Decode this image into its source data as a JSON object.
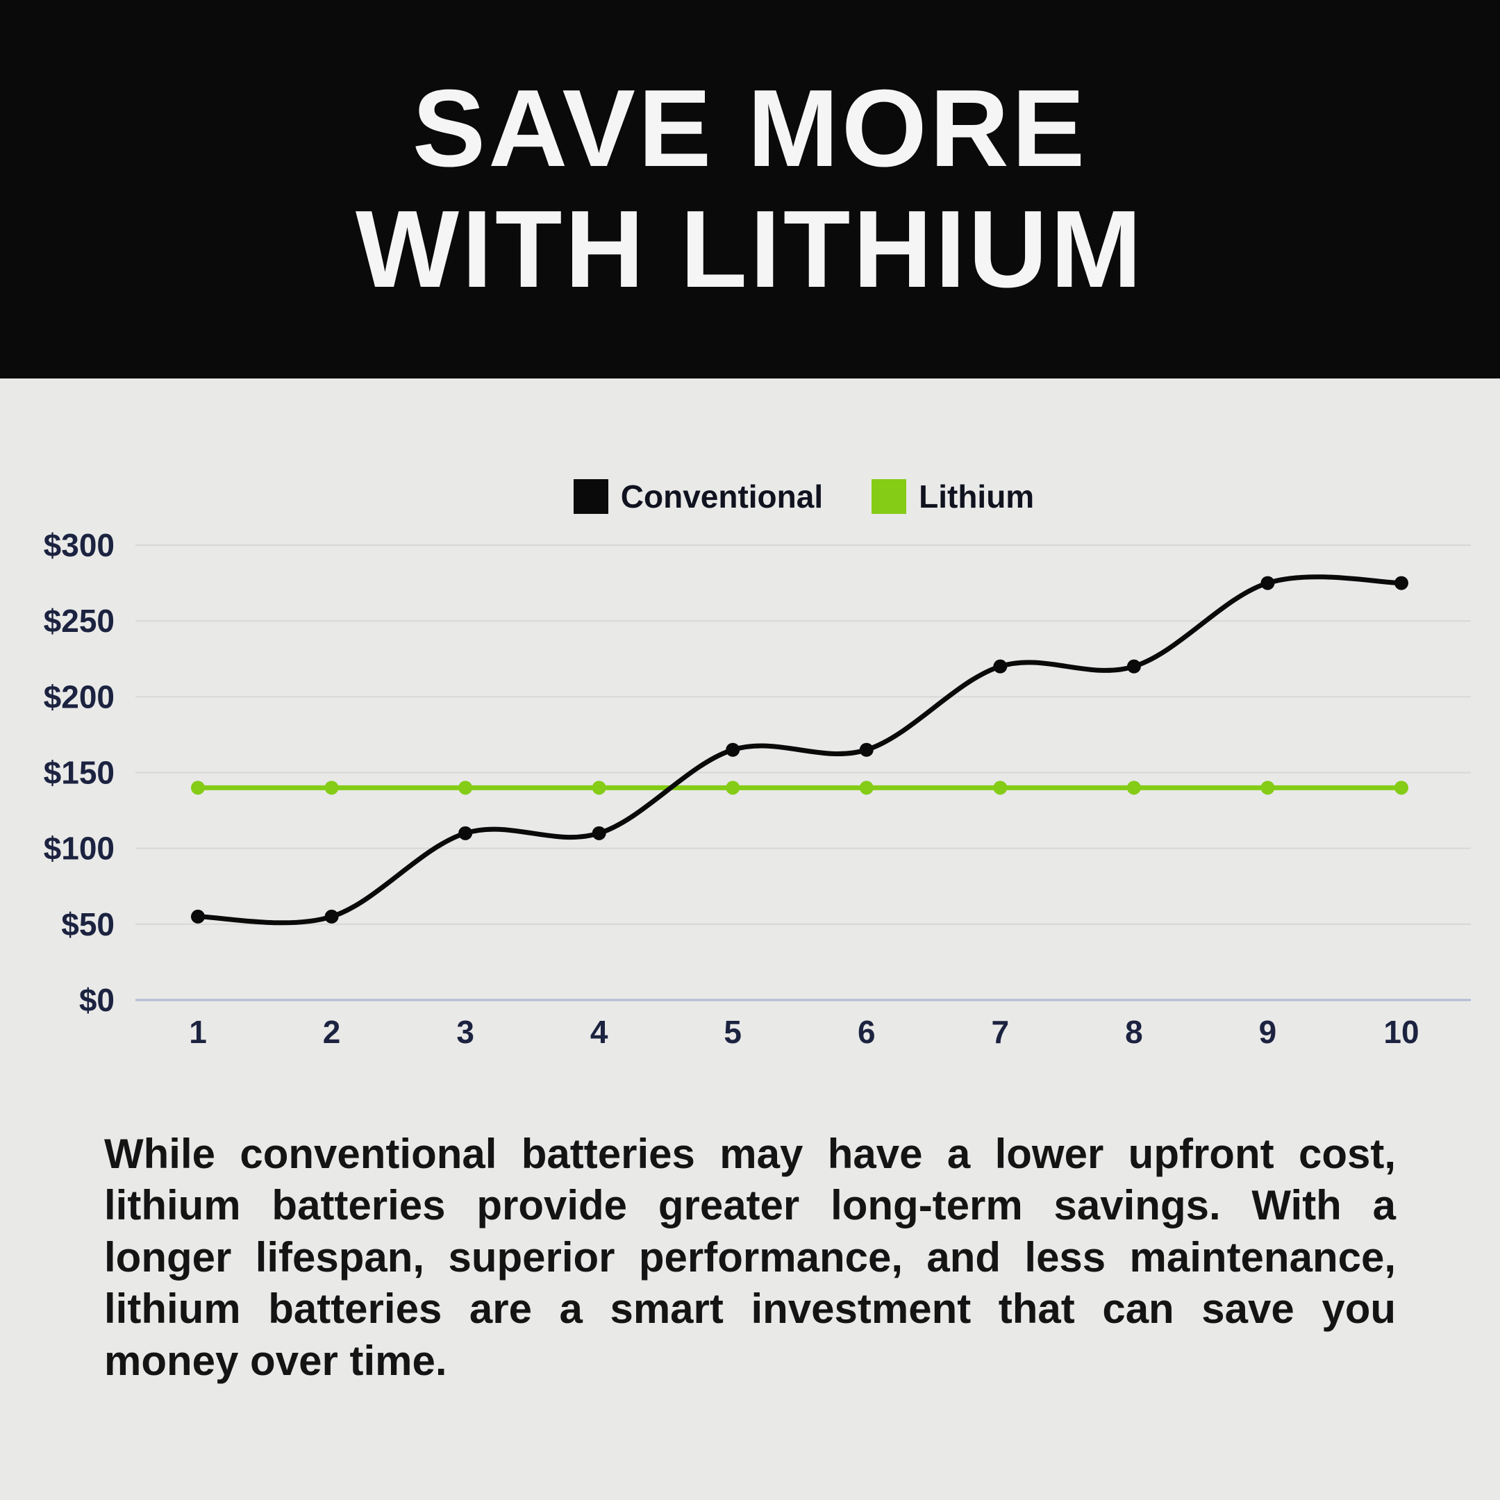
{
  "header": {
    "title_line1": "SAVE MORE",
    "title_line2": "WITH LITHIUM"
  },
  "chart_data": {
    "type": "line",
    "title": "",
    "x": [
      1,
      2,
      3,
      4,
      5,
      6,
      7,
      8,
      9,
      10
    ],
    "xtick_labels": [
      "1",
      "2",
      "3",
      "4",
      "5",
      "6",
      "7",
      "8",
      "9",
      "10"
    ],
    "series": [
      {
        "name": "Conventional",
        "color": "#0a0a0a",
        "values": [
          55,
          55,
          110,
          110,
          165,
          165,
          220,
          220,
          275,
          275
        ]
      },
      {
        "name": "Lithium",
        "color": "#84cc16",
        "values": [
          140,
          140,
          140,
          140,
          140,
          140,
          140,
          140,
          140,
          140
        ]
      }
    ],
    "ylim": [
      0,
      300
    ],
    "yticks": [
      0,
      50,
      100,
      150,
      200,
      250,
      300
    ],
    "ytick_labels": [
      "$0",
      "$50",
      "$100",
      "$150",
      "$200",
      "$250",
      "$300"
    ],
    "grid": true,
    "legend_position": "top-center"
  },
  "body_text": "While conventional batteries may have a lower upfront cost, lithium batteries provide greater long-term savings. With a longer lifespan, superior performance, and less maintenance, lithium batteries are a smart investment that can save you money over time.",
  "colors": {
    "background": "#e9e9e8",
    "header_bg": "#0a0a0a",
    "header_text": "#f5f5f5",
    "accent_green": "#84cc16",
    "axis_text": "#1c2340",
    "grid_line": "#d7d7d7",
    "axis_line": "#b3bcd6"
  }
}
